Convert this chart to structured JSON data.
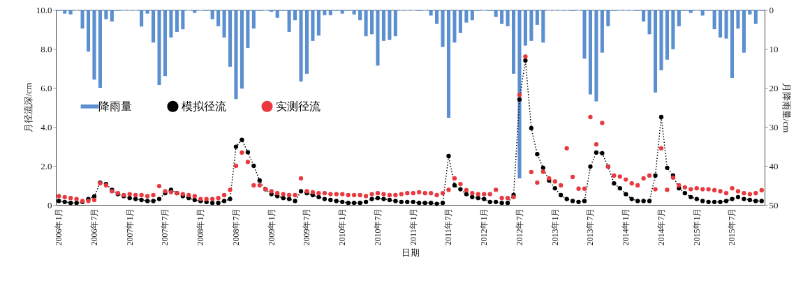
{
  "chart_data": {
    "type": "line",
    "xlabel": "日期",
    "ylabel": "月径流深/cm",
    "y2label": "月降雨量/cm",
    "categories": [
      "2006年1月",
      null,
      null,
      null,
      null,
      null,
      "2006年7月",
      null,
      null,
      null,
      null,
      null,
      "2007年1月",
      null,
      null,
      null,
      null,
      null,
      "2007年7月",
      null,
      null,
      null,
      null,
      null,
      "2008年1月",
      null,
      null,
      null,
      null,
      null,
      "2008年7月",
      null,
      null,
      null,
      null,
      null,
      "2009年1月",
      null,
      null,
      null,
      null,
      null,
      "2009年7月",
      null,
      null,
      null,
      null,
      null,
      "2010年1月",
      null,
      null,
      null,
      null,
      null,
      "2010年7月",
      null,
      null,
      null,
      null,
      null,
      "2011年1月",
      null,
      null,
      null,
      null,
      null,
      "2011年7月",
      null,
      null,
      null,
      null,
      null,
      "2012年1月",
      null,
      null,
      null,
      null,
      null,
      "2012年7月",
      null,
      null,
      null,
      null,
      null,
      "2013年1月",
      null,
      null,
      null,
      null,
      null,
      "2013年7月",
      null,
      null,
      null,
      null,
      null,
      "2014年1月",
      null,
      null,
      null,
      null,
      null,
      "2014年7月",
      null,
      null,
      null,
      null,
      null,
      "2015年1月",
      null,
      null,
      null,
      null,
      null,
      "2015年7月",
      null,
      null,
      null,
      null,
      null
    ],
    "ylim": [
      0,
      10
    ],
    "yticks": [
      {
        "value": 0,
        "label": "0"
      },
      {
        "value": 2,
        "label": "2.0"
      },
      {
        "value": 4,
        "label": "4.0"
      },
      {
        "value": 6,
        "label": "6.0"
      },
      {
        "value": 8,
        "label": "8.0"
      },
      {
        "value": 10,
        "label": "10.0"
      }
    ],
    "y2lim": [
      50,
      0
    ],
    "y2ticks": [
      0,
      10,
      20,
      30,
      40,
      50
    ],
    "legend": "left",
    "series": [
      {
        "name": "降雨量",
        "type": "bar",
        "axis": "y2",
        "color": "#5b8fd0",
        "values": [
          0.3,
          1.0,
          1.2,
          0.2,
          4.8,
          10.7,
          17.9,
          20.0,
          2.4,
          3.0,
          0.3,
          0.2,
          0.2,
          0.2,
          4.3,
          1.0,
          8.4,
          19.3,
          17.0,
          7.1,
          5.7,
          5.0,
          0.2,
          0.8,
          0.2,
          0.3,
          2.4,
          4.2,
          7.1,
          14.6,
          22.9,
          20.2,
          9.8,
          4.8,
          0.3,
          0.2,
          0.5,
          2.1,
          0.3,
          5.7,
          2.7,
          18.4,
          16.4,
          8.0,
          6.6,
          1.4,
          1.4,
          0.3,
          1.0,
          0.3,
          1.2,
          2.7,
          6.8,
          6.3,
          14.3,
          8.0,
          7.7,
          6.8,
          0.2,
          0.2,
          0.2,
          0.3,
          0.2,
          1.5,
          3.6,
          9.5,
          27.7,
          8.4,
          5.9,
          3.3,
          2.7,
          0.3,
          0.2,
          0.3,
          1.8,
          3.6,
          4.2,
          16.4,
          43.2,
          9.2,
          8.0,
          3.9,
          8.4,
          0.2,
          0.2,
          0.2,
          0.2,
          0.3,
          0.2,
          12.5,
          21.7,
          23.5,
          11.0,
          4.2,
          0.3,
          0.2,
          0.2,
          0.2,
          0.3,
          3.0,
          6.3,
          21.2,
          15.5,
          12.8,
          10.1,
          4.2,
          0.3,
          0.8,
          0.2,
          1.5,
          0.3,
          5.0,
          7.1,
          7.4,
          17.5,
          4.8,
          11.0,
          1.2,
          3.6,
          0.3
        ]
      },
      {
        "name": "模拟径流",
        "color": "#000000",
        "marker": "circle",
        "line_style": "dotted",
        "values": [
          0.2,
          0.15,
          0.1,
          0.1,
          0.15,
          0.3,
          0.43,
          1.14,
          1.07,
          0.77,
          0.55,
          0.45,
          0.35,
          0.3,
          0.25,
          0.2,
          0.2,
          0.3,
          0.6,
          0.77,
          0.6,
          0.45,
          0.35,
          0.25,
          0.2,
          0.15,
          0.1,
          0.1,
          0.2,
          0.3,
          2.98,
          3.33,
          2.7,
          2.0,
          1.25,
          0.8,
          0.55,
          0.45,
          0.35,
          0.3,
          0.2,
          0.7,
          0.6,
          0.5,
          0.4,
          0.3,
          0.25,
          0.2,
          0.15,
          0.1,
          0.1,
          0.1,
          0.15,
          0.3,
          0.35,
          0.3,
          0.25,
          0.2,
          0.15,
          0.15,
          0.15,
          0.1,
          0.1,
          0.1,
          0.05,
          0.1,
          2.5,
          1.0,
          0.8,
          0.55,
          0.4,
          0.35,
          0.3,
          0.15,
          0.15,
          0.1,
          0.1,
          0.5,
          5.4,
          7.4,
          3.93,
          2.6,
          1.9,
          1.25,
          0.85,
          0.5,
          0.3,
          0.2,
          0.15,
          0.2,
          1.96,
          2.68,
          2.65,
          1.96,
          1.1,
          0.85,
          0.55,
          0.3,
          0.2,
          0.2,
          0.2,
          1.5,
          4.5,
          1.9,
          1.5,
          0.85,
          0.6,
          0.4,
          0.3,
          0.2,
          0.15,
          0.15,
          0.15,
          0.2,
          0.3,
          0.4,
          0.3,
          0.25,
          0.2,
          0.2
        ]
      },
      {
        "name": "实测径流",
        "type": "scatter",
        "color": "#e8393f",
        "marker": "circle",
        "values": [
          0.45,
          0.4,
          0.35,
          0.3,
          0.2,
          0.2,
          0.25,
          1.1,
          1.0,
          0.7,
          0.6,
          0.5,
          0.55,
          0.5,
          0.5,
          0.45,
          0.5,
          0.96,
          0.7,
          0.65,
          0.6,
          0.55,
          0.5,
          0.45,
          0.3,
          0.3,
          0.3,
          0.35,
          0.5,
          0.77,
          2.0,
          2.68,
          2.2,
          1.0,
          1.0,
          0.8,
          0.7,
          0.6,
          0.55,
          0.5,
          0.5,
          1.36,
          0.7,
          0.65,
          0.6,
          0.6,
          0.55,
          0.55,
          0.55,
          0.5,
          0.5,
          0.5,
          0.45,
          0.55,
          0.6,
          0.55,
          0.5,
          0.5,
          0.55,
          0.6,
          0.6,
          0.65,
          0.6,
          0.6,
          0.5,
          0.6,
          0.77,
          1.36,
          1.07,
          0.75,
          0.6,
          0.55,
          0.55,
          0.55,
          0.77,
          0.35,
          0.35,
          0.4,
          5.64,
          7.6,
          1.68,
          1.14,
          1.7,
          1.36,
          1.2,
          1.0,
          2.9,
          1.43,
          0.83,
          0.83,
          4.5,
          3.1,
          4.2,
          1.96,
          1.5,
          1.45,
          1.3,
          1.1,
          1.0,
          1.36,
          1.5,
          0.8,
          2.9,
          0.77,
          1.4,
          1.0,
          0.9,
          0.8,
          0.85,
          0.8,
          0.8,
          0.75,
          0.7,
          0.6,
          0.85,
          0.7,
          0.6,
          0.55,
          0.6,
          0.75
        ]
      }
    ]
  }
}
